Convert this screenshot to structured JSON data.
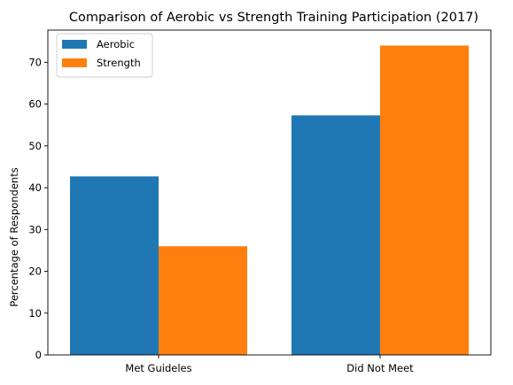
{
  "chart_data": {
    "type": "bar",
    "title": "Comparison of Aerobic vs Strength Training Participation (2017)",
    "xlabel": "",
    "ylabel": "Percentage of Respondents",
    "categories": [
      "Met Guideles",
      "Did Not Meet"
    ],
    "series": [
      {
        "name": "Aerobic",
        "values": [
          42.7,
          57.3
        ],
        "color": "#1f77b4"
      },
      {
        "name": "Strength",
        "values": [
          26.0,
          74.0
        ],
        "color": "#ff7f0e"
      }
    ],
    "ylim": [
      0,
      77.7
    ],
    "yticks": [
      0,
      10,
      20,
      30,
      40,
      50,
      60,
      70
    ],
    "legend_position": "top-left",
    "grid": false
  }
}
